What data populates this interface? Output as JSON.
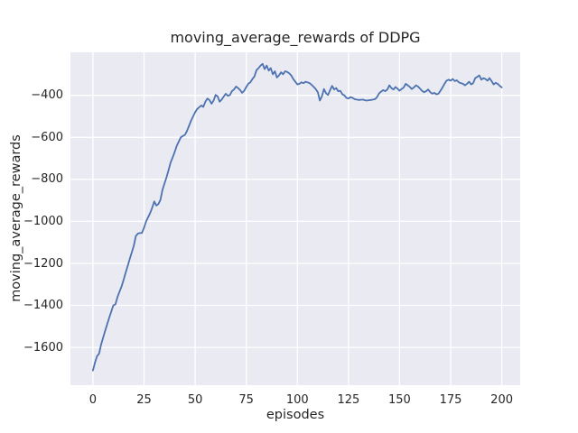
{
  "chart": {
    "title": "moving_average_rewards of DDPG",
    "xlabel": "episodes",
    "ylabel": "moving_average_rewards"
  },
  "colors": {
    "figure_bg": "#ffffff",
    "axes_bg": "#eaeaf2",
    "grid": "#ffffff",
    "line": "#4c72b0",
    "text": "#262626"
  },
  "chart_data": {
    "type": "line",
    "title": "moving_average_rewards of DDPG",
    "xlabel": "episodes",
    "ylabel": "moving_average_rewards",
    "legend": null,
    "grid": true,
    "x_start": 0,
    "x_step": 1,
    "x_end": 200,
    "xlim": [
      -11,
      209
    ],
    "ylim": [
      -1780,
      -195
    ],
    "xticks": {
      "values": [
        0,
        25,
        50,
        75,
        100,
        125,
        150,
        175,
        200
      ],
      "labels": [
        "0",
        "25",
        "50",
        "75",
        "100",
        "125",
        "150",
        "175",
        "200"
      ]
    },
    "yticks": {
      "values": [
        -400,
        -600,
        -800,
        -1000,
        -1200,
        -1400,
        -1600
      ],
      "labels": [
        "−400",
        "−600",
        "−800",
        "−1000",
        "−1200",
        "−1400",
        "−1600"
      ]
    },
    "values": [
      -1710,
      -1672,
      -1642,
      -1630,
      -1586,
      -1553,
      -1520,
      -1489,
      -1458,
      -1428,
      -1400,
      -1395,
      -1360,
      -1335,
      -1310,
      -1278,
      -1245,
      -1212,
      -1180,
      -1148,
      -1115,
      -1070,
      -1058,
      -1056,
      -1055,
      -1030,
      -1000,
      -980,
      -960,
      -935,
      -905,
      -925,
      -918,
      -898,
      -850,
      -820,
      -790,
      -755,
      -720,
      -695,
      -670,
      -640,
      -620,
      -600,
      -593,
      -588,
      -570,
      -545,
      -520,
      -500,
      -480,
      -465,
      -456,
      -448,
      -455,
      -430,
      -415,
      -422,
      -440,
      -425,
      -398,
      -405,
      -430,
      -420,
      -405,
      -392,
      -402,
      -398,
      -380,
      -372,
      -358,
      -365,
      -375,
      -388,
      -378,
      -360,
      -345,
      -338,
      -322,
      -310,
      -280,
      -270,
      -258,
      -250,
      -275,
      -258,
      -282,
      -270,
      -300,
      -285,
      -315,
      -305,
      -290,
      -300,
      -285,
      -288,
      -295,
      -305,
      -322,
      -335,
      -348,
      -345,
      -338,
      -342,
      -335,
      -338,
      -342,
      -350,
      -360,
      -370,
      -385,
      -425,
      -405,
      -370,
      -390,
      -398,
      -375,
      -355,
      -372,
      -365,
      -380,
      -378,
      -395,
      -400,
      -412,
      -415,
      -408,
      -412,
      -418,
      -420,
      -422,
      -421,
      -420,
      -423,
      -425,
      -423,
      -422,
      -420,
      -418,
      -408,
      -390,
      -382,
      -375,
      -380,
      -372,
      -352,
      -365,
      -372,
      -360,
      -368,
      -378,
      -370,
      -362,
      -345,
      -352,
      -360,
      -370,
      -362,
      -352,
      -358,
      -368,
      -378,
      -385,
      -380,
      -372,
      -385,
      -392,
      -388,
      -395,
      -392,
      -378,
      -362,
      -345,
      -330,
      -325,
      -330,
      -322,
      -332,
      -328,
      -338,
      -342,
      -345,
      -352,
      -345,
      -335,
      -348,
      -342,
      -318,
      -312,
      -305,
      -325,
      -318,
      -322,
      -330,
      -318,
      -332,
      -348,
      -340,
      -345,
      -355,
      -362
    ],
    "line_color": "#4c72b0",
    "line_width": 1.8,
    "plot_bg": "#eaeaf2",
    "grid_color": "#ffffff",
    "legend_position": "none"
  }
}
